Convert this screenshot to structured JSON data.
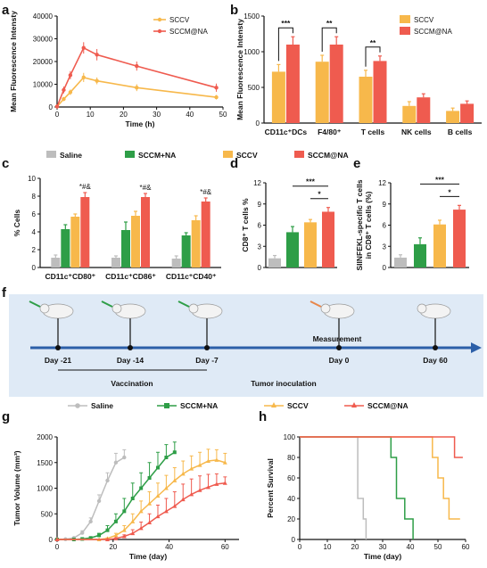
{
  "colors": {
    "saline": "#bdbdbd",
    "sccm_na_plus": "#2e9e47",
    "sccv": "#f7b84b",
    "sccm_at_na": "#ef5b4f",
    "timeline_bg": "#dfeaf6",
    "arrow": "#2c5fa8"
  },
  "panels": {
    "a": "a",
    "b": "b",
    "c": "c",
    "d": "d",
    "e": "e",
    "f": "f",
    "g": "g",
    "h": "h"
  },
  "chart_data": [
    {
      "id": "a",
      "type": "line",
      "xlabel": "Time (h)",
      "ylabel": "Mean Fluorescence Intensty",
      "xlim": [
        0,
        50
      ],
      "ylim": [
        0,
        40000
      ],
      "xticks": [
        "0",
        "10",
        "20",
        "30",
        "40",
        "50"
      ],
      "yticks": [
        "0",
        "10000",
        "20000",
        "30000",
        "40000"
      ],
      "x": [
        0,
        2,
        4,
        8,
        12,
        24,
        48
      ],
      "series": [
        {
          "name": "SCCV",
          "values": [
            200,
            3500,
            6500,
            13000,
            11500,
            8500,
            4300
          ],
          "errors": [
            300,
            900,
            1200,
            2000,
            1500,
            1500,
            1000
          ]
        },
        {
          "name": "SCCM@NA",
          "values": [
            200,
            7500,
            14000,
            26000,
            23000,
            18000,
            8500
          ],
          "errors": [
            300,
            1500,
            1800,
            2500,
            2500,
            2000,
            1800
          ]
        }
      ],
      "legend": "top-right"
    },
    {
      "id": "b",
      "type": "bar",
      "xlabel": "",
      "ylabel": "Mean Fluorescence Intensty",
      "ylim": [
        0,
        1500
      ],
      "yticks": [
        "0",
        "500",
        "1000",
        "1500"
      ],
      "categories": [
        "CD11c⁺DCs",
        "F4/80⁺",
        "T cells",
        "NK cells",
        "B cells"
      ],
      "series": [
        {
          "name": "SCCV",
          "values": [
            720,
            860,
            650,
            240,
            170
          ],
          "errors": [
            100,
            90,
            90,
            60,
            40
          ]
        },
        {
          "name": "SCCM@NA",
          "values": [
            1100,
            1100,
            870,
            360,
            270
          ],
          "errors": [
            110,
            110,
            70,
            50,
            40
          ]
        }
      ],
      "significance": [
        {
          "category": 0,
          "label": "***"
        },
        {
          "category": 1,
          "label": "**"
        },
        {
          "category": 2,
          "label": "**"
        }
      ],
      "legend": "top-right"
    },
    {
      "id": "c",
      "type": "bar",
      "xlabel": "",
      "ylabel": "% Cells",
      "ylim": [
        0,
        10
      ],
      "yticks": [
        "0",
        "2",
        "4",
        "6",
        "8",
        "10"
      ],
      "categories": [
        "CD11c⁺CD80⁺",
        "CD11c⁺CD86⁺",
        "CD11c⁺CD40⁺"
      ],
      "series": [
        {
          "name": "Saline",
          "values": [
            1.1,
            1.1,
            1.0
          ],
          "errors": [
            0.3,
            0.2,
            0.3
          ]
        },
        {
          "name": "SCCM+NA",
          "values": [
            4.3,
            4.2,
            3.6
          ],
          "errors": [
            0.5,
            0.9,
            0.3
          ]
        },
        {
          "name": "SCCV",
          "values": [
            5.7,
            5.8,
            5.3
          ],
          "errors": [
            0.3,
            0.5,
            0.5
          ]
        },
        {
          "name": "SCCM@NA",
          "values": [
            7.9,
            7.9,
            7.4
          ],
          "errors": [
            0.5,
            0.4,
            0.4
          ]
        }
      ],
      "annotations": [
        "*#&",
        "*#&",
        "*#&"
      ]
    },
    {
      "id": "d",
      "type": "bar",
      "xlabel": "",
      "ylabel": "CD8⁺ T cells %",
      "ylim": [
        0,
        12
      ],
      "yticks": [
        "0",
        "3",
        "6",
        "9",
        "12"
      ],
      "categories": [
        "Saline",
        "SCCM+NA",
        "SCCV",
        "SCCM@NA"
      ],
      "values": [
        1.3,
        5.0,
        6.4,
        7.9
      ],
      "errors": [
        0.4,
        0.8,
        0.4,
        0.6
      ],
      "significance": [
        "***",
        "*"
      ]
    },
    {
      "id": "e",
      "type": "bar",
      "xlabel": "",
      "ylabel": "SIINFEKL-specific T cells in CD8⁺ T cells (%)",
      "ylim": [
        0,
        12
      ],
      "yticks": [
        "0",
        "3",
        "6",
        "9",
        "12"
      ],
      "categories": [
        "Saline",
        "SCCM+NA",
        "SCCV",
        "SCCM@NA"
      ],
      "values": [
        1.4,
        3.3,
        6.1,
        8.2
      ],
      "errors": [
        0.4,
        0.9,
        0.6,
        0.6
      ],
      "significance": [
        "***",
        "*"
      ]
    },
    {
      "id": "f",
      "type": "diagram",
      "days": [
        "Day -21",
        "Day -14",
        "Day -7",
        "Day 0",
        "Day 60"
      ],
      "labels": {
        "vaccination": "Vaccination",
        "inoculation": "Tumor inoculation",
        "measurement": "Measurement"
      }
    },
    {
      "id": "g",
      "type": "line",
      "xlabel": "Time (day)",
      "ylabel": "Tumor Volume (mm³)",
      "xlim": [
        0,
        65
      ],
      "ylim": [
        0,
        2000
      ],
      "xticks": [
        "0",
        "20",
        "40",
        "60"
      ],
      "yticks": [
        "0",
        "500",
        "1000",
        "1500",
        "2000"
      ],
      "series": [
        {
          "name": "Saline",
          "x": [
            0,
            3,
            6,
            9,
            12,
            15,
            18,
            21,
            24
          ],
          "values": [
            0,
            5,
            30,
            130,
            350,
            750,
            1150,
            1500,
            1600
          ],
          "errors": [
            0,
            5,
            10,
            40,
            70,
            120,
            150,
            180,
            150
          ]
        },
        {
          "name": "SCCM+NA",
          "x": [
            0,
            6,
            9,
            12,
            15,
            18,
            21,
            24,
            27,
            30,
            33,
            36,
            39,
            42
          ],
          "values": [
            0,
            0,
            10,
            30,
            80,
            180,
            350,
            550,
            800,
            1000,
            1200,
            1400,
            1600,
            1700
          ],
          "errors": [
            0,
            0,
            5,
            10,
            40,
            90,
            150,
            250,
            300,
            300,
            300,
            300,
            250,
            200
          ]
        },
        {
          "name": "SCCV",
          "x": [
            0,
            15,
            18,
            21,
            24,
            27,
            30,
            33,
            36,
            39,
            42,
            45,
            48,
            51,
            54,
            57,
            60
          ],
          "values": [
            0,
            0,
            20,
            80,
            180,
            350,
            550,
            700,
            850,
            1000,
            1150,
            1280,
            1380,
            1450,
            1530,
            1550,
            1500
          ],
          "errors": [
            0,
            0,
            10,
            40,
            90,
            150,
            200,
            230,
            250,
            250,
            250,
            250,
            250,
            250,
            230,
            200,
            180
          ]
        },
        {
          "name": "SCCM@NA",
          "x": [
            0,
            18,
            21,
            24,
            27,
            30,
            33,
            36,
            39,
            42,
            45,
            48,
            51,
            54,
            57,
            60
          ],
          "values": [
            0,
            0,
            20,
            60,
            120,
            220,
            330,
            450,
            550,
            650,
            780,
            880,
            960,
            1020,
            1080,
            1100
          ],
          "errors": [
            0,
            0,
            10,
            30,
            70,
            120,
            170,
            220,
            250,
            280,
            300,
            300,
            280,
            250,
            200,
            120
          ]
        }
      ],
      "legend": "top"
    },
    {
      "id": "h",
      "type": "line",
      "xlabel": "Time (day)",
      "ylabel": "Percent Survival",
      "xlim": [
        0,
        60
      ],
      "ylim": [
        0,
        100
      ],
      "xticks": [
        "0",
        "10",
        "20",
        "30",
        "40",
        "50",
        "60"
      ],
      "yticks": [
        "0",
        "20",
        "40",
        "60",
        "80",
        "100"
      ],
      "series": [
        {
          "name": "Saline",
          "x": [
            0,
            21,
            21,
            23,
            23,
            24,
            24
          ],
          "values": [
            100,
            100,
            40,
            40,
            20,
            20,
            0
          ]
        },
        {
          "name": "SCCM+NA",
          "x": [
            0,
            33,
            33,
            35,
            35,
            38,
            38,
            41,
            41
          ],
          "values": [
            100,
            100,
            80,
            80,
            40,
            40,
            20,
            20,
            0
          ]
        },
        {
          "name": "SCCV",
          "x": [
            0,
            48,
            48,
            50,
            50,
            52,
            52,
            54,
            54,
            56,
            56,
            58
          ],
          "values": [
            100,
            100,
            80,
            80,
            60,
            60,
            40,
            40,
            20,
            20,
            20,
            20
          ]
        },
        {
          "name": "SCCM@NA",
          "x": [
            0,
            56,
            56,
            59
          ],
          "values": [
            100,
            100,
            80,
            80
          ]
        }
      ]
    }
  ]
}
